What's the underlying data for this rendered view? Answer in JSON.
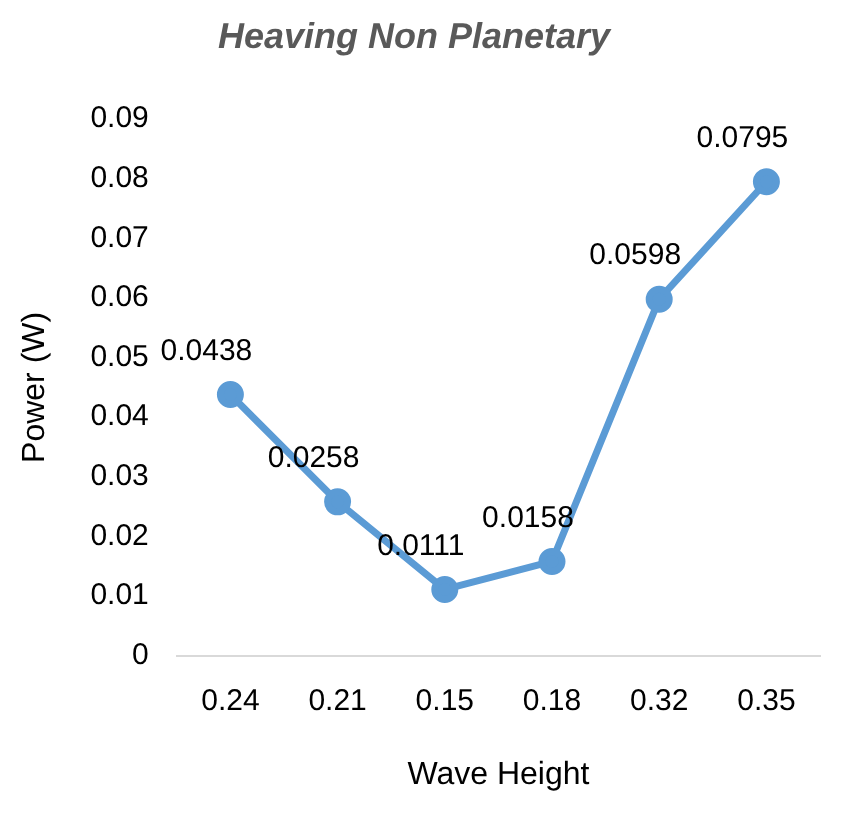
{
  "chart_data": {
    "type": "line",
    "title": "Heaving Non Planetary",
    "xlabel": "Wave Height",
    "ylabel": "Power (W)",
    "categories": [
      "0.24",
      "0.21",
      "0.15",
      "0.18",
      "0.32",
      "0.35"
    ],
    "series": [
      {
        "color": "#5b9bd5",
        "values": [
          0.0438,
          0.0258,
          0.0111,
          0.0158,
          0.0598,
          0.0795
        ]
      }
    ],
    "ylim": [
      0,
      0.09
    ],
    "yticks": [
      0,
      0.01,
      0.02,
      0.03,
      0.04,
      0.05,
      0.06,
      0.07,
      0.08,
      0.09
    ],
    "grid": false,
    "legend": false,
    "marker": "circle",
    "line_style": "solid",
    "data_labels": true
  }
}
